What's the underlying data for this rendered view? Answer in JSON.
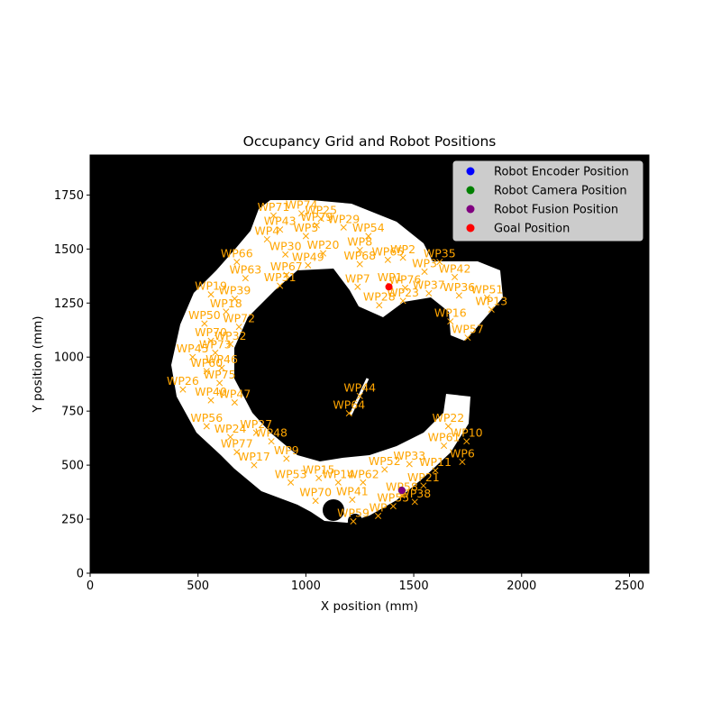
{
  "chart_data": {
    "type": "scatter",
    "title": "Occupancy Grid and Robot Positions",
    "xlabel": "X position (mm)",
    "ylabel": "Y position (mm)",
    "xlim": [
      0,
      2590
    ],
    "ylim": [
      0,
      1935
    ],
    "xticks": [
      0,
      500,
      1000,
      1500,
      2000,
      2500
    ],
    "yticks": [
      0,
      250,
      500,
      750,
      1000,
      1250,
      1500,
      1750
    ],
    "grid": false,
    "background": "occupancy grid: black = occupied, white = free",
    "legend_position": "top-right",
    "legend": [
      {
        "label": "Robot Encoder Position",
        "color": "#0000ff"
      },
      {
        "label": "Robot Camera Position",
        "color": "#008000"
      },
      {
        "label": "Robot Fusion Position",
        "color": "#800080"
      },
      {
        "label": "Goal Position",
        "color": "#ff0000"
      }
    ],
    "waypoint_color": "#ffa500",
    "robot_position": {
      "x": 1445,
      "y": 383
    },
    "goal_position": {
      "x": 1385,
      "y": 1325
    },
    "waypoints": [
      {
        "label": "WP71",
        "x": 850,
        "y": 1655
      },
      {
        "label": "WP74",
        "x": 980,
        "y": 1665
      },
      {
        "label": "WP25",
        "x": 1070,
        "y": 1640
      },
      {
        "label": "WP43",
        "x": 880,
        "y": 1590
      },
      {
        "label": "WP79",
        "x": 1050,
        "y": 1610
      },
      {
        "label": "WP29",
        "x": 1175,
        "y": 1600
      },
      {
        "label": "WP4",
        "x": 820,
        "y": 1545
      },
      {
        "label": "WP5",
        "x": 1000,
        "y": 1560
      },
      {
        "label": "WP54",
        "x": 1290,
        "y": 1560
      },
      {
        "label": "WP30",
        "x": 905,
        "y": 1475
      },
      {
        "label": "WP20",
        "x": 1080,
        "y": 1480
      },
      {
        "label": "WP8",
        "x": 1250,
        "y": 1495
      },
      {
        "label": "WP66",
        "x": 680,
        "y": 1440
      },
      {
        "label": "WP49",
        "x": 1010,
        "y": 1425
      },
      {
        "label": "WP68",
        "x": 1250,
        "y": 1430
      },
      {
        "label": "WP65",
        "x": 1380,
        "y": 1450
      },
      {
        "label": "WP2",
        "x": 1450,
        "y": 1460
      },
      {
        "label": "WP35",
        "x": 1620,
        "y": 1440
      },
      {
        "label": "WP63",
        "x": 720,
        "y": 1365
      },
      {
        "label": "WP67",
        "x": 910,
        "y": 1380
      },
      {
        "label": "WP3",
        "x": 1550,
        "y": 1395
      },
      {
        "label": "WP42",
        "x": 1690,
        "y": 1370
      },
      {
        "label": "WP31",
        "x": 880,
        "y": 1330
      },
      {
        "label": "WP7",
        "x": 1240,
        "y": 1325
      },
      {
        "label": "WP1",
        "x": 1390,
        "y": 1330
      },
      {
        "label": "WP76",
        "x": 1460,
        "y": 1320
      },
      {
        "label": "WP37",
        "x": 1570,
        "y": 1295
      },
      {
        "label": "WP36",
        "x": 1710,
        "y": 1285
      },
      {
        "label": "WP51",
        "x": 1840,
        "y": 1275
      },
      {
        "label": "WP19",
        "x": 560,
        "y": 1290
      },
      {
        "label": "WP39",
        "x": 670,
        "y": 1270
      },
      {
        "label": "WP23",
        "x": 1450,
        "y": 1260
      },
      {
        "label": "WP28",
        "x": 1340,
        "y": 1240
      },
      {
        "label": "WP13",
        "x": 1860,
        "y": 1220
      },
      {
        "label": "WP18",
        "x": 630,
        "y": 1210
      },
      {
        "label": "WP50",
        "x": 530,
        "y": 1155
      },
      {
        "label": "WP72",
        "x": 690,
        "y": 1140
      },
      {
        "label": "WP16",
        "x": 1670,
        "y": 1165
      },
      {
        "label": "WP57",
        "x": 1750,
        "y": 1090
      },
      {
        "label": "WP70",
        "x": 560,
        "y": 1075
      },
      {
        "label": "WP32",
        "x": 650,
        "y": 1060
      },
      {
        "label": "WP73",
        "x": 580,
        "y": 1020
      },
      {
        "label": "WP45",
        "x": 475,
        "y": 1000
      },
      {
        "label": "WP46",
        "x": 610,
        "y": 950
      },
      {
        "label": "WP60",
        "x": 540,
        "y": 935
      },
      {
        "label": "WP75",
        "x": 600,
        "y": 880
      },
      {
        "label": "WP26",
        "x": 430,
        "y": 850
      },
      {
        "label": "WP40",
        "x": 560,
        "y": 800
      },
      {
        "label": "WP47",
        "x": 670,
        "y": 790
      },
      {
        "label": "WP44",
        "x": 1250,
        "y": 820
      },
      {
        "label": "WP64",
        "x": 1200,
        "y": 740
      },
      {
        "label": "WP56",
        "x": 540,
        "y": 680
      },
      {
        "label": "WP22",
        "x": 1660,
        "y": 680
      },
      {
        "label": "WP27",
        "x": 770,
        "y": 650
      },
      {
        "label": "WP24",
        "x": 650,
        "y": 630
      },
      {
        "label": "WP48",
        "x": 840,
        "y": 610
      },
      {
        "label": "WP61",
        "x": 1640,
        "y": 590
      },
      {
        "label": "WP10",
        "x": 1745,
        "y": 610
      },
      {
        "label": "WP77",
        "x": 680,
        "y": 560
      },
      {
        "label": "WP9",
        "x": 910,
        "y": 530
      },
      {
        "label": "WP6",
        "x": 1725,
        "y": 515
      },
      {
        "label": "WP17",
        "x": 760,
        "y": 500
      },
      {
        "label": "WP33",
        "x": 1480,
        "y": 505
      },
      {
        "label": "WP52",
        "x": 1365,
        "y": 480
      },
      {
        "label": "WP11",
        "x": 1600,
        "y": 475
      },
      {
        "label": "WP53",
        "x": 930,
        "y": 420
      },
      {
        "label": "WP15",
        "x": 1060,
        "y": 440
      },
      {
        "label": "WP14",
        "x": 1150,
        "y": 420
      },
      {
        "label": "WP62",
        "x": 1265,
        "y": 420
      },
      {
        "label": "WP21",
        "x": 1545,
        "y": 405
      },
      {
        "label": "WP70",
        "x": 1045,
        "y": 335
      },
      {
        "label": "WP41",
        "x": 1215,
        "y": 340
      },
      {
        "label": "WP58",
        "x": 1445,
        "y": 360
      },
      {
        "label": "WP38",
        "x": 1505,
        "y": 330
      },
      {
        "label": "WP55",
        "x": 1405,
        "y": 310
      },
      {
        "label": "WP59",
        "x": 1220,
        "y": 240
      },
      {
        "label": "WP",
        "x": 1335,
        "y": 265
      }
    ]
  },
  "legend_marker_color": "#ffa500"
}
